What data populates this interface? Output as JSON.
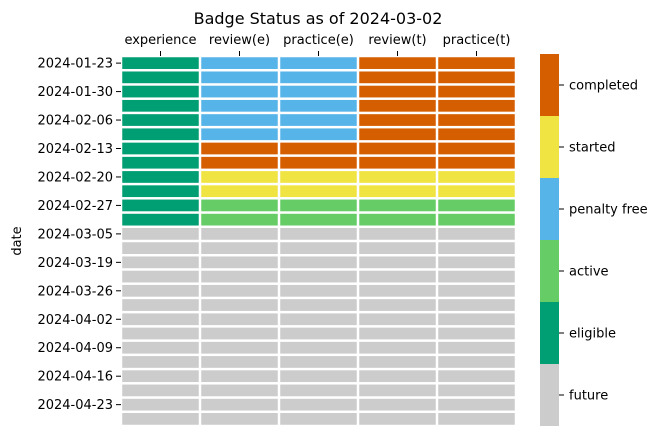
{
  "chart_data": {
    "type": "heatmap",
    "title": "Badge Status as of 2024-03-02",
    "ylabel": "date",
    "xlabel": "",
    "columns": [
      "experience",
      "review(e)",
      "practice(e)",
      "review(t)",
      "practice(t)"
    ],
    "row_tick_labels": [
      "2024-01-23",
      "2024-01-30",
      "2024-02-06",
      "2024-02-13",
      "2024-02-20",
      "2024-02-27",
      "2024-03-05",
      "2024-03-19",
      "2024-03-26",
      "2024-04-02",
      "2024-04-09",
      "2024-04-16",
      "2024-04-23"
    ],
    "row_count": 26,
    "tick_rows": [
      0,
      2,
      4,
      6,
      8,
      10,
      12,
      14,
      16,
      18,
      20,
      22,
      24
    ],
    "status_levels": [
      "future",
      "eligible",
      "active",
      "penalty free",
      "started",
      "completed"
    ],
    "status_colors": {
      "future": "#cccccc",
      "eligible": "#009e73",
      "active": "#66cc66",
      "penalty free": "#56b4e9",
      "started": "#f0e442",
      "completed": "#d55e00"
    },
    "grid": false,
    "legend": "colorbar-right",
    "cells": [
      [
        "eligible",
        "penalty free",
        "penalty free",
        "completed",
        "completed"
      ],
      [
        "eligible",
        "penalty free",
        "penalty free",
        "completed",
        "completed"
      ],
      [
        "eligible",
        "penalty free",
        "penalty free",
        "completed",
        "completed"
      ],
      [
        "eligible",
        "penalty free",
        "penalty free",
        "completed",
        "completed"
      ],
      [
        "eligible",
        "penalty free",
        "penalty free",
        "completed",
        "completed"
      ],
      [
        "eligible",
        "penalty free",
        "penalty free",
        "completed",
        "completed"
      ],
      [
        "eligible",
        "completed",
        "completed",
        "completed",
        "completed"
      ],
      [
        "eligible",
        "completed",
        "completed",
        "completed",
        "completed"
      ],
      [
        "eligible",
        "started",
        "started",
        "started",
        "started"
      ],
      [
        "eligible",
        "started",
        "started",
        "started",
        "started"
      ],
      [
        "eligible",
        "active",
        "active",
        "active",
        "active"
      ],
      [
        "eligible",
        "active",
        "active",
        "active",
        "active"
      ],
      [
        "future",
        "future",
        "future",
        "future",
        "future"
      ],
      [
        "future",
        "future",
        "future",
        "future",
        "future"
      ],
      [
        "future",
        "future",
        "future",
        "future",
        "future"
      ],
      [
        "future",
        "future",
        "future",
        "future",
        "future"
      ],
      [
        "future",
        "future",
        "future",
        "future",
        "future"
      ],
      [
        "future",
        "future",
        "future",
        "future",
        "future"
      ],
      [
        "future",
        "future",
        "future",
        "future",
        "future"
      ],
      [
        "future",
        "future",
        "future",
        "future",
        "future"
      ],
      [
        "future",
        "future",
        "future",
        "future",
        "future"
      ],
      [
        "future",
        "future",
        "future",
        "future",
        "future"
      ],
      [
        "future",
        "future",
        "future",
        "future",
        "future"
      ],
      [
        "future",
        "future",
        "future",
        "future",
        "future"
      ],
      [
        "future",
        "future",
        "future",
        "future",
        "future"
      ],
      [
        "future",
        "future",
        "future",
        "future",
        "future"
      ]
    ]
  }
}
